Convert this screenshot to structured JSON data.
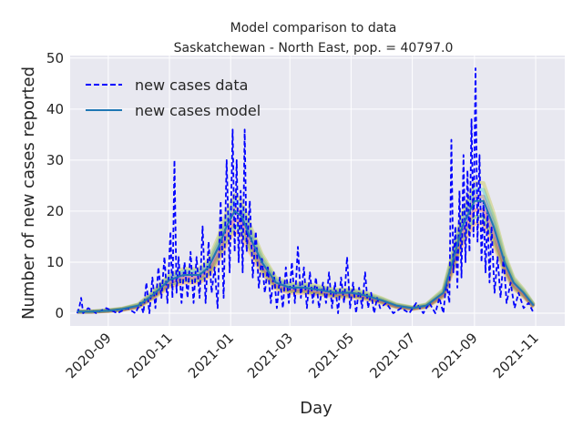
{
  "chart_data": {
    "type": "line",
    "title": "Model comparison to data",
    "subtitle": "Saskatchewan - North East, pop. = 40797.0",
    "xlabel": "Day",
    "ylabel": "Number of new cases reported",
    "x_range": [
      "2020-07-25",
      "2021-11-30"
    ],
    "ylim": [
      -2.5,
      50.5
    ],
    "y_ticks": [
      0,
      10,
      20,
      30,
      40,
      50
    ],
    "x_ticks": [
      "2020-09",
      "2020-11",
      "2021-01",
      "2021-03",
      "2021-05",
      "2021-07",
      "2021-09",
      "2021-11"
    ],
    "grid": true,
    "legend_position": "top-left",
    "background_color": "#e8e8f0",
    "series": [
      {
        "name": "new cases data",
        "style": "dashed",
        "color": "#0000ff",
        "points": [
          [
            "2020-08-01",
            0
          ],
          [
            "2020-08-03",
            1
          ],
          [
            "2020-08-05",
            3
          ],
          [
            "2020-08-07",
            0
          ],
          [
            "2020-08-12",
            1
          ],
          [
            "2020-08-20",
            0
          ],
          [
            "2020-08-30",
            1
          ],
          [
            "2020-09-10",
            0
          ],
          [
            "2020-09-20",
            1
          ],
          [
            "2020-09-28",
            0
          ],
          [
            "2020-10-03",
            2
          ],
          [
            "2020-10-06",
            0
          ],
          [
            "2020-10-09",
            6
          ],
          [
            "2020-10-12",
            0
          ],
          [
            "2020-10-15",
            7
          ],
          [
            "2020-10-18",
            1
          ],
          [
            "2020-10-21",
            9
          ],
          [
            "2020-10-24",
            3
          ],
          [
            "2020-10-27",
            11
          ],
          [
            "2020-10-30",
            2
          ],
          [
            "2020-11-02",
            16
          ],
          [
            "2020-11-04",
            3
          ],
          [
            "2020-11-06",
            30
          ],
          [
            "2020-11-08",
            4
          ],
          [
            "2020-11-10",
            11
          ],
          [
            "2020-11-13",
            2
          ],
          [
            "2020-11-16",
            10
          ],
          [
            "2020-11-19",
            3
          ],
          [
            "2020-11-22",
            12
          ],
          [
            "2020-11-25",
            2
          ],
          [
            "2020-11-28",
            11
          ],
          [
            "2020-12-01",
            3
          ],
          [
            "2020-12-04",
            17
          ],
          [
            "2020-12-07",
            2
          ],
          [
            "2020-12-10",
            14
          ],
          [
            "2020-12-13",
            4
          ],
          [
            "2020-12-16",
            9
          ],
          [
            "2020-12-19",
            1
          ],
          [
            "2020-12-22",
            22
          ],
          [
            "2020-12-25",
            3
          ],
          [
            "2020-12-28",
            30
          ],
          [
            "2020-12-31",
            8
          ],
          [
            "2021-01-03",
            36
          ],
          [
            "2021-01-05",
            12
          ],
          [
            "2021-01-07",
            30
          ],
          [
            "2021-01-09",
            10
          ],
          [
            "2021-01-11",
            24
          ],
          [
            "2021-01-13",
            8
          ],
          [
            "2021-01-15",
            36
          ],
          [
            "2021-01-17",
            12
          ],
          [
            "2021-01-20",
            22
          ],
          [
            "2021-01-23",
            7
          ],
          [
            "2021-01-26",
            16
          ],
          [
            "2021-01-29",
            5
          ],
          [
            "2021-02-01",
            11
          ],
          [
            "2021-02-04",
            4
          ],
          [
            "2021-02-07",
            9
          ],
          [
            "2021-02-10",
            2
          ],
          [
            "2021-02-13",
            8
          ],
          [
            "2021-02-16",
            1
          ],
          [
            "2021-02-19",
            7
          ],
          [
            "2021-02-22",
            1
          ],
          [
            "2021-02-25",
            9
          ],
          [
            "2021-02-28",
            2
          ],
          [
            "2021-03-03",
            10
          ],
          [
            "2021-03-06",
            2
          ],
          [
            "2021-03-09",
            13
          ],
          [
            "2021-03-12",
            3
          ],
          [
            "2021-03-15",
            9
          ],
          [
            "2021-03-18",
            1
          ],
          [
            "2021-03-21",
            8
          ],
          [
            "2021-03-24",
            2
          ],
          [
            "2021-03-27",
            7
          ],
          [
            "2021-03-30",
            1
          ],
          [
            "2021-04-03",
            6
          ],
          [
            "2021-04-06",
            2
          ],
          [
            "2021-04-09",
            8
          ],
          [
            "2021-04-12",
            1
          ],
          [
            "2021-04-15",
            6
          ],
          [
            "2021-04-18",
            0
          ],
          [
            "2021-04-21",
            7
          ],
          [
            "2021-04-24",
            2
          ],
          [
            "2021-04-27",
            11
          ],
          [
            "2021-04-30",
            1
          ],
          [
            "2021-05-03",
            6
          ],
          [
            "2021-05-06",
            0
          ],
          [
            "2021-05-09",
            5
          ],
          [
            "2021-05-12",
            1
          ],
          [
            "2021-05-15",
            8
          ],
          [
            "2021-05-18",
            1
          ],
          [
            "2021-05-21",
            4
          ],
          [
            "2021-05-24",
            0
          ],
          [
            "2021-05-27",
            3
          ],
          [
            "2021-05-30",
            1
          ],
          [
            "2021-06-05",
            2
          ],
          [
            "2021-06-12",
            0
          ],
          [
            "2021-06-20",
            1
          ],
          [
            "2021-06-28",
            0
          ],
          [
            "2021-07-05",
            2
          ],
          [
            "2021-07-12",
            0
          ],
          [
            "2021-07-18",
            2
          ],
          [
            "2021-07-24",
            0
          ],
          [
            "2021-07-28",
            3
          ],
          [
            "2021-08-01",
            0
          ],
          [
            "2021-08-04",
            6
          ],
          [
            "2021-08-07",
            2
          ],
          [
            "2021-08-09",
            34
          ],
          [
            "2021-08-11",
            8
          ],
          [
            "2021-08-13",
            17
          ],
          [
            "2021-08-15",
            5
          ],
          [
            "2021-08-17",
            24
          ],
          [
            "2021-08-19",
            7
          ],
          [
            "2021-08-21",
            31
          ],
          [
            "2021-08-23",
            10
          ],
          [
            "2021-08-25",
            28
          ],
          [
            "2021-08-27",
            12
          ],
          [
            "2021-08-29",
            38
          ],
          [
            "2021-08-31",
            15
          ],
          [
            "2021-09-02",
            48
          ],
          [
            "2021-09-04",
            14
          ],
          [
            "2021-09-06",
            31
          ],
          [
            "2021-09-08",
            10
          ],
          [
            "2021-09-10",
            22
          ],
          [
            "2021-09-12",
            8
          ],
          [
            "2021-09-14",
            20
          ],
          [
            "2021-09-16",
            6
          ],
          [
            "2021-09-18",
            17
          ],
          [
            "2021-09-21",
            4
          ],
          [
            "2021-09-24",
            11
          ],
          [
            "2021-09-27",
            3
          ],
          [
            "2021-09-30",
            11
          ],
          [
            "2021-10-03",
            2
          ],
          [
            "2021-10-07",
            6
          ],
          [
            "2021-10-11",
            1
          ],
          [
            "2021-10-15",
            4
          ],
          [
            "2021-10-20",
            1
          ],
          [
            "2021-10-25",
            2
          ],
          [
            "2021-10-30",
            0
          ]
        ]
      },
      {
        "name": "new cases model",
        "style": "solid",
        "color": "#1f77b4",
        "points": [
          [
            "2020-08-01",
            0.3
          ],
          [
            "2020-08-15",
            0.3
          ],
          [
            "2020-09-01",
            0.5
          ],
          [
            "2020-09-15",
            0.8
          ],
          [
            "2020-10-01",
            1.5
          ],
          [
            "2020-10-15",
            3.5
          ],
          [
            "2020-11-01",
            6.5
          ],
          [
            "2020-11-15",
            7.5
          ],
          [
            "2020-12-01",
            7.5
          ],
          [
            "2020-12-10",
            9
          ],
          [
            "2020-12-20",
            13
          ],
          [
            "2020-12-28",
            17
          ],
          [
            "2021-01-05",
            20
          ],
          [
            "2021-01-12",
            19
          ],
          [
            "2021-01-20",
            15
          ],
          [
            "2021-02-01",
            10
          ],
          [
            "2021-02-15",
            6
          ],
          [
            "2021-03-01",
            5
          ],
          [
            "2021-03-15",
            5
          ],
          [
            "2021-04-01",
            4.5
          ],
          [
            "2021-04-15",
            4
          ],
          [
            "2021-05-01",
            4
          ],
          [
            "2021-05-15",
            3.5
          ],
          [
            "2021-06-01",
            2.5
          ],
          [
            "2021-06-15",
            1.5
          ],
          [
            "2021-07-01",
            1
          ],
          [
            "2021-07-15",
            1.5
          ],
          [
            "2021-08-01",
            4
          ],
          [
            "2021-08-10",
            10
          ],
          [
            "2021-08-20",
            17
          ],
          [
            "2021-09-01",
            22
          ],
          [
            "2021-09-10",
            22
          ],
          [
            "2021-09-20",
            17
          ],
          [
            "2021-10-01",
            10
          ],
          [
            "2021-10-10",
            6
          ],
          [
            "2021-10-20",
            4
          ],
          [
            "2021-10-30",
            1.5
          ]
        ]
      }
    ],
    "ensemble_colors": [
      "#ff7f0e",
      "#2ca02c",
      "#d62728",
      "#9467bd",
      "#8c564b",
      "#17becf",
      "#bcbd22"
    ]
  }
}
